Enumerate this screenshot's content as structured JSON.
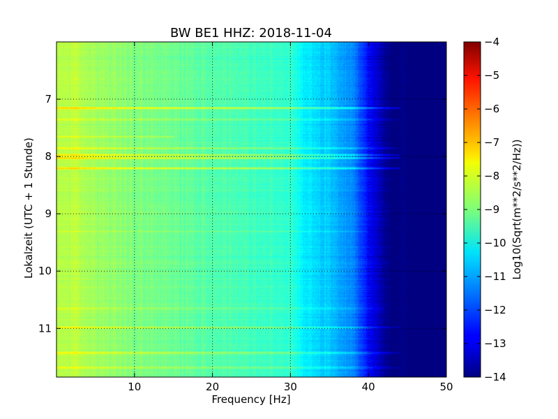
{
  "chart_data": {
    "type": "heatmap",
    "title": "BW BE1 HHZ: 2018-11-04",
    "xlabel": "Frequency [Hz]",
    "ylabel": "Lokalzeit (UTC + 1 Stunde)",
    "colorbar_label": "Log10(Sqrt(m**2/s**2/Hz))",
    "xlim": [
      0,
      50
    ],
    "ylim": [
      11.85,
      6.0
    ],
    "y_inverted": true,
    "x_ticks": [
      10,
      20,
      30,
      40,
      50
    ],
    "y_ticks": [
      7,
      8,
      9,
      10,
      11
    ],
    "clim": [
      -14,
      -4
    ],
    "colorbar_ticks": [
      -4,
      -5,
      -6,
      -7,
      -8,
      -9,
      -10,
      -11,
      -12,
      -13,
      -14
    ],
    "colormap": "jet",
    "grid": true,
    "spectral_profile": {
      "frequency_hz": [
        0,
        2,
        5,
        10,
        15,
        20,
        25,
        30,
        32,
        35,
        38,
        40,
        42,
        44,
        45,
        50
      ],
      "log10_amplitude": [
        -8.5,
        -8.4,
        -8.7,
        -9.0,
        -9.2,
        -9.4,
        -9.6,
        -9.8,
        -10.4,
        -10.8,
        -11.4,
        -12.5,
        -13.3,
        -13.9,
        -14.0,
        -14.0
      ]
    },
    "horizontal_bands": [
      {
        "time_h": 7.15,
        "boost": 1.5,
        "fmax": 44
      },
      {
        "time_h": 7.35,
        "boost": 0.6,
        "fmax": 44
      },
      {
        "time_h": 7.65,
        "boost": 0.6,
        "fmax": 15
      },
      {
        "time_h": 7.85,
        "boost": 0.8,
        "fmax": 44
      },
      {
        "time_h": 7.97,
        "boost": 1.2,
        "fmax": 44
      },
      {
        "time_h": 8.02,
        "boost": 1.3,
        "fmax": 44
      },
      {
        "time_h": 8.2,
        "boost": 1.3,
        "fmax": 44
      },
      {
        "time_h": 9.3,
        "boost": 0.4,
        "fmax": 40
      },
      {
        "time_h": 10.65,
        "boost": 0.5,
        "fmax": 42
      },
      {
        "time_h": 10.98,
        "boost": 0.9,
        "fmax": 44
      },
      {
        "time_h": 11.42,
        "boost": 0.9,
        "fmax": 44
      },
      {
        "time_h": 11.68,
        "boost": 0.7,
        "fmax": 44
      }
    ]
  }
}
